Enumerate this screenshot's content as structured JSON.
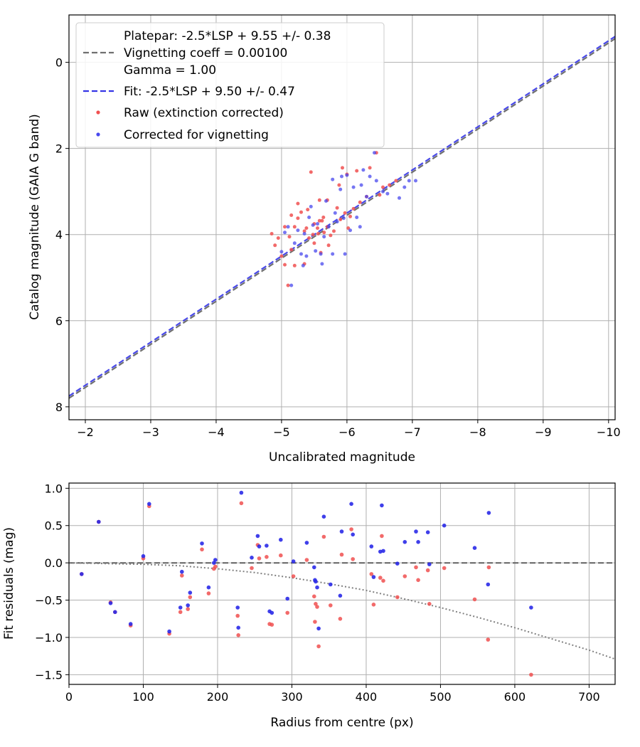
{
  "chart_data": [
    {
      "type": "scatter",
      "xlabel": "Uncalibrated magnitude",
      "ylabel": "Catalog magnitude (GAIA G band)",
      "xlim": [
        -1.75,
        -10.1
      ],
      "ylim": [
        8.3,
        -1.1
      ],
      "x_inverted": true,
      "y_inverted": true,
      "grid": true,
      "legend_position": "upper-left",
      "xticks": [
        -2,
        -3,
        -4,
        -5,
        -6,
        -7,
        -8,
        -9,
        -10
      ],
      "xtick_labels": [
        "−2",
        "−3",
        "−4",
        "−5",
        "−6",
        "−7",
        "−8",
        "−9",
        "−10"
      ],
      "yticks": [
        0,
        2,
        4,
        6,
        8
      ],
      "ytick_labels": [
        "0",
        "2",
        "4",
        "6",
        "8"
      ],
      "legend": [
        {
          "label": "Platepar: -2.5*LSP + 9.55 +/- 0.38",
          "style": "blank"
        },
        {
          "label": "Vignetting coeff = 0.00100",
          "style": "dashed",
          "color": "#707070"
        },
        {
          "label": "Gamma = 1.00",
          "style": "blank"
        },
        {
          "label": "Fit: -2.5*LSP + 9.50 +/- 0.47",
          "style": "dashed",
          "color": "#3535e6"
        },
        {
          "label": "Raw (extinction corrected)",
          "style": "dot",
          "color": "#f05050"
        },
        {
          "label": "Corrected for vignetting",
          "style": "dot",
          "color": "#4848ee"
        }
      ],
      "series": [
        {
          "name": "Platepar: -2.5*LSP + 9.55 +/- 0.38",
          "kind": "line",
          "color": "#707070",
          "x": [
            -1.75,
            -10.1
          ],
          "y": [
            7.8,
            -0.55
          ]
        },
        {
          "name": "Fit: -2.5*LSP + 9.50 +/- 0.47",
          "kind": "line",
          "color": "#3535e6",
          "x": [
            -1.75,
            -10.1
          ],
          "y": [
            7.75,
            -0.6
          ]
        },
        {
          "name": "Raw (extinction corrected)",
          "kind": "scatter",
          "color": "#f05050",
          "x": [
            -4.85,
            -4.9,
            -4.95,
            -5.0,
            -5.05,
            -5.1,
            -5.05,
            -5.12,
            -5.15,
            -5.2,
            -5.25,
            -5.2,
            -5.3,
            -5.35,
            -5.4,
            -5.42,
            -5.45,
            -5.5,
            -5.5,
            -5.55,
            -5.58,
            -5.6,
            -5.62,
            -5.65,
            -5.7,
            -5.7,
            -5.75,
            -5.8,
            -5.85,
            -5.9,
            -5.93,
            -5.97,
            -6.0,
            -6.02,
            -6.05,
            -6.1,
            -6.15,
            -6.2,
            -6.3,
            -6.35,
            -6.45,
            -6.5,
            -6.55,
            -6.65,
            -6.75,
            -5.38,
            -5.48,
            -5.35,
            -5.58,
            -5.64,
            -5.88,
            -5.15,
            -5.25,
            -5.56,
            -5.72
          ],
          "y": [
            3.98,
            4.25,
            4.08,
            4.5,
            4.7,
            5.18,
            3.82,
            4.05,
            3.55,
            3.82,
            3.28,
            4.72,
            3.48,
            3.92,
            3.42,
            4.08,
            2.55,
            3.75,
            4.2,
            3.85,
            3.2,
            4.42,
            3.68,
            3.95,
            3.82,
            3.2,
            4.02,
            3.92,
            3.38,
            3.65,
            2.45,
            3.5,
            2.6,
            3.85,
            3.58,
            3.4,
            2.52,
            3.25,
            3.12,
            2.45,
            2.1,
            3.08,
            2.9,
            2.85,
            2.75,
            3.85,
            4.0,
            4.68,
            3.68,
            3.6,
            2.85,
            4.35,
            3.62,
            3.98,
            4.25
          ]
        },
        {
          "name": "Corrected for vignetting",
          "kind": "scatter",
          "color": "#4848ee",
          "x": [
            -5.0,
            -5.05,
            -5.1,
            -5.15,
            -5.2,
            -5.25,
            -5.3,
            -5.35,
            -5.38,
            -5.42,
            -5.48,
            -5.52,
            -5.55,
            -5.6,
            -5.62,
            -5.68,
            -5.72,
            -5.78,
            -5.82,
            -5.85,
            -5.9,
            -5.95,
            -6.0,
            -6.05,
            -6.1,
            -6.15,
            -6.2,
            -6.25,
            -6.3,
            -6.35,
            -6.45,
            -6.55,
            -6.62,
            -6.8,
            -6.88,
            -6.95,
            -7.05,
            -5.97,
            -6.22,
            -5.65,
            -5.45,
            -5.78,
            -6.42,
            -5.33,
            -5.92
          ],
          "y": [
            4.4,
            3.95,
            3.82,
            5.18,
            4.2,
            3.9,
            4.45,
            3.98,
            4.5,
            3.6,
            3.78,
            4.38,
            3.75,
            4.45,
            4.68,
            3.22,
            3.82,
            4.45,
            3.5,
            3.7,
            2.95,
            3.62,
            2.62,
            3.9,
            2.9,
            3.6,
            3.82,
            2.5,
            3.12,
            2.65,
            2.75,
            3.0,
            3.05,
            3.15,
            2.9,
            2.75,
            2.75,
            4.45,
            2.85,
            4.05,
            3.35,
            2.72,
            2.1,
            4.72,
            2.65
          ]
        }
      ]
    },
    {
      "type": "scatter",
      "xlabel": "Radius from centre (px)",
      "ylabel": "Fit residuals (mag)",
      "xlim": [
        0,
        735
      ],
      "ylim": [
        -1.63,
        1.07
      ],
      "grid": true,
      "xticks": [
        0,
        100,
        200,
        300,
        400,
        500,
        600,
        700
      ],
      "xtick_labels": [
        "0",
        "100",
        "200",
        "300",
        "400",
        "500",
        "600",
        "700"
      ],
      "yticks": [
        1.0,
        0.5,
        0.0,
        -0.5,
        -1.0,
        -1.5
      ],
      "ytick_labels": [
        "1.0",
        "0.5",
        "0.0",
        "−0.5",
        "−1.0",
        "−1.5"
      ],
      "series": [
        {
          "name": "zero-line",
          "kind": "line",
          "color": "#606060",
          "x": [
            0,
            735
          ],
          "y": [
            0,
            0
          ]
        },
        {
          "name": "vignetting-model",
          "kind": "line",
          "color": "#808080",
          "x": [
            0,
            100,
            150,
            200,
            250,
            300,
            350,
            400,
            450,
            500,
            550,
            600,
            650,
            700,
            735
          ],
          "y": [
            0.0,
            -0.02,
            -0.04,
            -0.08,
            -0.13,
            -0.2,
            -0.28,
            -0.37,
            -0.48,
            -0.6,
            -0.73,
            -0.87,
            -1.02,
            -1.17,
            -1.29
          ]
        },
        {
          "name": "Raw (extinction corrected)",
          "kind": "scatter",
          "color": "#f05050",
          "x": [
            17,
            40,
            56,
            62,
            83,
            100,
            108,
            135,
            150,
            152,
            160,
            163,
            179,
            188,
            195,
            197,
            227,
            228,
            232,
            246,
            254,
            256,
            266,
            270,
            273,
            285,
            294,
            302,
            320,
            330,
            331,
            332,
            334,
            336,
            343,
            352,
            365,
            367,
            380,
            382,
            407,
            410,
            419,
            421,
            423,
            442,
            452,
            467,
            470,
            483,
            485,
            505,
            546,
            564,
            565,
            622
          ],
          "y": [
            -0.15,
            0.55,
            -0.53,
            -0.66,
            -0.84,
            0.06,
            0.76,
            -0.95,
            -0.66,
            -0.17,
            -0.62,
            -0.46,
            0.18,
            -0.41,
            -0.08,
            -0.05,
            -0.71,
            -0.97,
            0.8,
            -0.07,
            0.24,
            0.06,
            0.08,
            -0.82,
            -0.83,
            0.1,
            -0.67,
            -0.18,
            0.04,
            -0.45,
            -0.79,
            -0.55,
            -0.59,
            -1.12,
            0.35,
            -0.57,
            -0.75,
            0.11,
            0.45,
            0.05,
            -0.15,
            -0.56,
            -0.2,
            0.36,
            -0.24,
            -0.46,
            -0.18,
            -0.06,
            -0.23,
            -0.1,
            -0.55,
            -0.07,
            -0.49,
            -1.03,
            -0.06,
            -1.5
          ]
        },
        {
          "name": "Corrected for vignetting",
          "kind": "scatter",
          "color": "#2a2ae8",
          "x": [
            17,
            40,
            56,
            62,
            83,
            100,
            108,
            135,
            150,
            152,
            160,
            163,
            179,
            188,
            195,
            197,
            227,
            228,
            232,
            246,
            254,
            256,
            266,
            270,
            273,
            285,
            294,
            302,
            320,
            330,
            331,
            332,
            334,
            336,
            343,
            352,
            365,
            367,
            380,
            382,
            407,
            410,
            419,
            421,
            423,
            442,
            452,
            467,
            470,
            483,
            485,
            505,
            546,
            564,
            565,
            622
          ],
          "y": [
            -0.15,
            0.55,
            -0.54,
            -0.66,
            -0.82,
            0.09,
            0.79,
            -0.92,
            -0.6,
            -0.12,
            -0.57,
            -0.4,
            0.26,
            -0.33,
            0.0,
            0.04,
            -0.6,
            -0.87,
            0.94,
            0.07,
            0.36,
            0.22,
            0.23,
            -0.65,
            -0.67,
            0.31,
            -0.48,
            0.02,
            0.27,
            -0.06,
            -0.23,
            -0.25,
            -0.33,
            -0.88,
            0.62,
            -0.29,
            -0.44,
            0.42,
            0.79,
            0.38,
            0.22,
            -0.19,
            0.15,
            0.77,
            0.16,
            -0.01,
            0.28,
            0.42,
            0.28,
            0.41,
            -0.02,
            0.5,
            0.2,
            -0.29,
            0.67,
            -0.6
          ]
        }
      ]
    }
  ]
}
